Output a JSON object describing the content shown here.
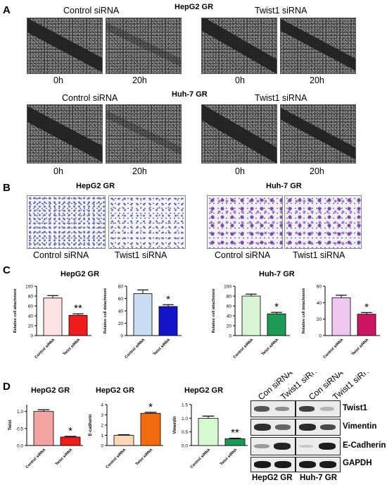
{
  "panel_a": {
    "letter": "A",
    "rows": [
      {
        "title": "HepG2 GR",
        "left_label": "Control siRNA",
        "right_label": "Twist1 siRNA",
        "times": [
          "0h",
          "20h",
          "0h",
          "20h"
        ]
      },
      {
        "title": "Huh-7 GR",
        "left_label": "Control siRNA",
        "right_label": "Twist1 siRNA",
        "times": [
          "0h",
          "20h",
          "0h",
          "20h"
        ]
      }
    ]
  },
  "panel_b": {
    "letter": "B",
    "groups": [
      {
        "title": "HepG2 GR",
        "labels": [
          "Control siRNA",
          "Twist1 siRNA"
        ]
      },
      {
        "title": "Huh-7 GR",
        "labels": [
          "Control siRNA",
          "Twist1 siRNA"
        ]
      }
    ]
  },
  "panel_c": {
    "letter": "C",
    "group_titles": [
      "HepG2 GR",
      "Huh-7 GR"
    ]
  },
  "panel_d": {
    "letter": "D",
    "blot": {
      "lanes": [
        "Con siRNA",
        "Twist1 siRNA",
        "Con siRNA",
        "Twist1 siRNA"
      ],
      "proteins": [
        "Twist1",
        "Vimentin",
        "E-Cadherin",
        "GAPDH"
      ],
      "cell_lines": [
        "HepG2 GR",
        "Huh-7 GR"
      ]
    }
  },
  "chart_data": [
    {
      "type": "bar",
      "title": "HepG2 GR",
      "ylabel": "Relative cell attachment",
      "categories": [
        "Control siRNA",
        "Twist siRNA"
      ],
      "values": [
        76,
        41
      ],
      "errors": [
        5,
        3
      ],
      "ylim": [
        0,
        100
      ],
      "yticks": [
        0,
        20,
        40,
        60,
        80,
        100
      ],
      "colors": [
        "#fde1e3",
        "#ee1c1c"
      ],
      "significance": "**"
    },
    {
      "type": "bar",
      "title": "",
      "ylabel": "Relative cell detachment",
      "categories": [
        "Control siRNA",
        "Twist siRNA"
      ],
      "values": [
        68,
        47
      ],
      "errors": [
        6,
        3
      ],
      "ylim": [
        0,
        80
      ],
      "yticks": [
        0,
        20,
        40,
        60,
        80
      ],
      "colors": [
        "#c8dcf4",
        "#1414c8"
      ],
      "significance": "*"
    },
    {
      "type": "bar",
      "title": "Huh-7 GR",
      "ylabel": "Relative cell attachment",
      "categories": [
        "Control siRNA",
        "Twist siRNA"
      ],
      "values": [
        80,
        44
      ],
      "errors": [
        4,
        3
      ],
      "ylim": [
        0,
        100
      ],
      "yticks": [
        0,
        20,
        40,
        60,
        80,
        100
      ],
      "colors": [
        "#d9f6d4",
        "#1e9a57"
      ],
      "significance": "*"
    },
    {
      "type": "bar",
      "title": "",
      "ylabel": "Relative cell detachment",
      "categories": [
        "Control siRNA",
        "Twist siRNA"
      ],
      "values": [
        46,
        26
      ],
      "errors": [
        3,
        2
      ],
      "ylim": [
        0,
        60
      ],
      "yticks": [
        0,
        20,
        40,
        60
      ],
      "colors": [
        "#efc8f2",
        "#cc1463"
      ],
      "significance": "*"
    },
    {
      "type": "bar",
      "title": "HepG2 GR",
      "ylabel": "Twist",
      "categories": [
        "Control siRNA",
        "Twist siRNA"
      ],
      "values": [
        1.0,
        0.25
      ],
      "errors": [
        0.05,
        0.02
      ],
      "ylim": [
        0,
        1.2
      ],
      "yticks": [
        0.0,
        0.5,
        1.0
      ],
      "colors": [
        "#f4a3a3",
        "#ee1c1c"
      ],
      "significance": "*"
    },
    {
      "type": "bar",
      "title": "HepG2 GR",
      "ylabel": "E-cadherin",
      "categories": [
        "Control siRNA",
        "Twist siRNA"
      ],
      "values": [
        1.0,
        3.15
      ],
      "errors": [
        0.05,
        0.1
      ],
      "ylim": [
        0,
        4
      ],
      "yticks": [
        0,
        1,
        2,
        3,
        4
      ],
      "colors": [
        "#fdd7b7",
        "#f26c0f"
      ],
      "significance": "*"
    },
    {
      "type": "bar",
      "title": "HepG2 GR",
      "ylabel": "Vimentin",
      "categories": [
        "Control siRNA",
        "Twist siRNA"
      ],
      "values": [
        1.0,
        0.25
      ],
      "errors": [
        0.08,
        0.02
      ],
      "ylim": [
        0,
        1.5
      ],
      "yticks": [
        0.0,
        0.5,
        1.0,
        1.5
      ],
      "colors": [
        "#d7f9d2",
        "#1a9a57"
      ],
      "significance": "**"
    }
  ]
}
